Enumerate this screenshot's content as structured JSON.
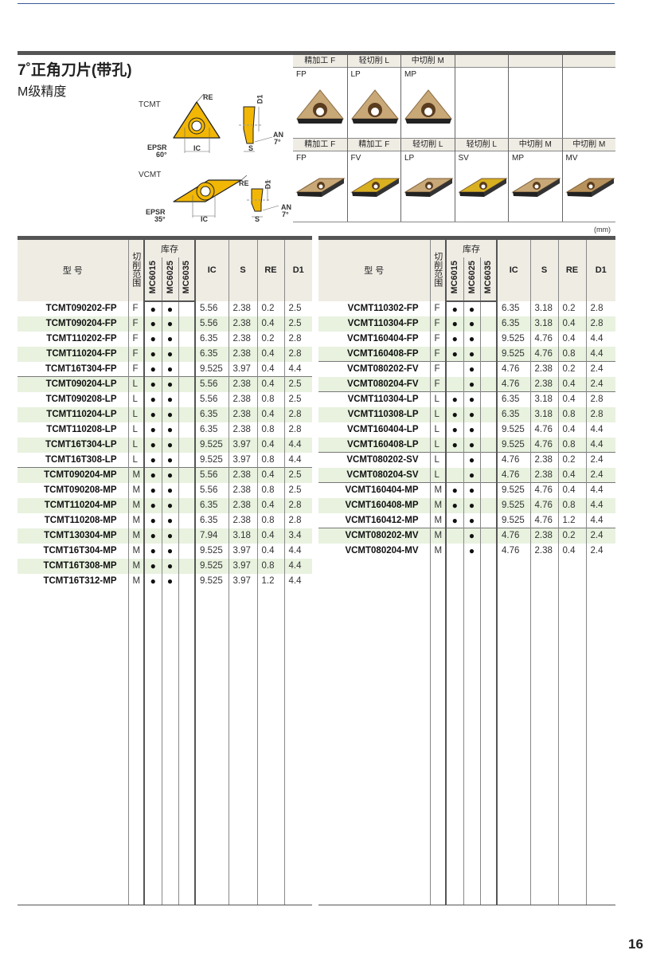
{
  "page": {
    "title": "7˚正角刀片(带孔)",
    "subtitle": "M级精度",
    "unit": "(mm)",
    "page_number": "16"
  },
  "diagrams": {
    "tcmt": {
      "name": "TCMT",
      "re": "RE",
      "d1": "D1",
      "an": "AN",
      "an_val": "7°",
      "epsr": "EPSR",
      "epsr_val": "60°",
      "ic": "IC",
      "s": "S"
    },
    "vcmt": {
      "name": "VCMT",
      "re": "RE",
      "d1": "D1",
      "an": "AN",
      "an_val": "7°",
      "epsr": "EPSR",
      "epsr_val": "35°",
      "ic": "IC",
      "s": "S"
    }
  },
  "chipbreakers": {
    "row1": [
      {
        "head": "精加工 F",
        "code": "FP",
        "shape": "tri"
      },
      {
        "head": "轻切削 L",
        "code": "LP",
        "shape": "tri"
      },
      {
        "head": "中切削 M",
        "code": "MP",
        "shape": "tri"
      },
      {
        "head": "",
        "code": ""
      },
      {
        "head": "",
        "code": ""
      },
      {
        "head": "",
        "code": ""
      }
    ],
    "row2": [
      {
        "head": "精加工 F",
        "code": "FP",
        "color": "#c9a878"
      },
      {
        "head": "精加工 F",
        "code": "FV",
        "color": "#d8b020"
      },
      {
        "head": "轻切削 L",
        "code": "LP",
        "color": "#c9a878"
      },
      {
        "head": "轻切削 L",
        "code": "SV",
        "color": "#d8b020"
      },
      {
        "head": "中切削 M",
        "code": "MP",
        "color": "#c9a878"
      },
      {
        "head": "中切削 M",
        "code": "MV",
        "color": "#b8925c"
      }
    ]
  },
  "table_headers": {
    "model": "型 号",
    "range": "切削范围",
    "stock": "库存",
    "grades": [
      "MC6015",
      "MC6025",
      "MC6035"
    ],
    "ic": "IC",
    "s": "S",
    "re": "RE",
    "d1": "D1"
  },
  "left_rows": [
    [
      "TCMT090202-FP",
      "F",
      1,
      1,
      0,
      "5.56",
      "2.38",
      "0.2",
      "2.5"
    ],
    [
      "TCMT090204-FP",
      "F",
      1,
      1,
      0,
      "5.56",
      "2.38",
      "0.4",
      "2.5"
    ],
    [
      "TCMT110202-FP",
      "F",
      1,
      1,
      0,
      "6.35",
      "2.38",
      "0.2",
      "2.8"
    ],
    [
      "TCMT110204-FP",
      "F",
      1,
      1,
      0,
      "6.35",
      "2.38",
      "0.4",
      "2.8"
    ],
    [
      "TCMT16T304-FP",
      "F",
      1,
      1,
      0,
      "9.525",
      "3.97",
      "0.4",
      "4.4"
    ],
    [
      "TCMT090204-LP",
      "L",
      1,
      1,
      0,
      "5.56",
      "2.38",
      "0.4",
      "2.5"
    ],
    [
      "TCMT090208-LP",
      "L",
      1,
      1,
      0,
      "5.56",
      "2.38",
      "0.8",
      "2.5"
    ],
    [
      "TCMT110204-LP",
      "L",
      1,
      1,
      0,
      "6.35",
      "2.38",
      "0.4",
      "2.8"
    ],
    [
      "TCMT110208-LP",
      "L",
      1,
      1,
      0,
      "6.35",
      "2.38",
      "0.8",
      "2.8"
    ],
    [
      "TCMT16T304-LP",
      "L",
      1,
      1,
      0,
      "9.525",
      "3.97",
      "0.4",
      "4.4"
    ],
    [
      "TCMT16T308-LP",
      "L",
      1,
      1,
      0,
      "9.525",
      "3.97",
      "0.8",
      "4.4"
    ],
    [
      "TCMT090204-MP",
      "M",
      1,
      1,
      0,
      "5.56",
      "2.38",
      "0.4",
      "2.5"
    ],
    [
      "TCMT090208-MP",
      "M",
      1,
      1,
      0,
      "5.56",
      "2.38",
      "0.8",
      "2.5"
    ],
    [
      "TCMT110204-MP",
      "M",
      1,
      1,
      0,
      "6.35",
      "2.38",
      "0.4",
      "2.8"
    ],
    [
      "TCMT110208-MP",
      "M",
      1,
      1,
      0,
      "6.35",
      "2.38",
      "0.8",
      "2.8"
    ],
    [
      "TCMT130304-MP",
      "M",
      1,
      1,
      0,
      "7.94",
      "3.18",
      "0.4",
      "3.4"
    ],
    [
      "TCMT16T304-MP",
      "M",
      1,
      1,
      0,
      "9.525",
      "3.97",
      "0.4",
      "4.4"
    ],
    [
      "TCMT16T308-MP",
      "M",
      1,
      1,
      0,
      "9.525",
      "3.97",
      "0.8",
      "4.4"
    ],
    [
      "TCMT16T312-MP",
      "M",
      1,
      1,
      0,
      "9.525",
      "3.97",
      "1.2",
      "4.4"
    ]
  ],
  "right_rows": [
    [
      "VCMT110302-FP",
      "F",
      1,
      1,
      0,
      "6.35",
      "3.18",
      "0.2",
      "2.8"
    ],
    [
      "VCMT110304-FP",
      "F",
      1,
      1,
      0,
      "6.35",
      "3.18",
      "0.4",
      "2.8"
    ],
    [
      "VCMT160404-FP",
      "F",
      1,
      1,
      0,
      "9.525",
      "4.76",
      "0.4",
      "4.4"
    ],
    [
      "VCMT160408-FP",
      "F",
      1,
      1,
      0,
      "9.525",
      "4.76",
      "0.8",
      "4.4"
    ],
    [
      "VCMT080202-FV",
      "F",
      0,
      1,
      0,
      "4.76",
      "2.38",
      "0.2",
      "2.4"
    ],
    [
      "VCMT080204-FV",
      "F",
      0,
      1,
      0,
      "4.76",
      "2.38",
      "0.4",
      "2.4"
    ],
    [
      "VCMT110304-LP",
      "L",
      1,
      1,
      0,
      "6.35",
      "3.18",
      "0.4",
      "2.8"
    ],
    [
      "VCMT110308-LP",
      "L",
      1,
      1,
      0,
      "6.35",
      "3.18",
      "0.8",
      "2.8"
    ],
    [
      "VCMT160404-LP",
      "L",
      1,
      1,
      0,
      "9.525",
      "4.76",
      "0.4",
      "4.4"
    ],
    [
      "VCMT160408-LP",
      "L",
      1,
      1,
      0,
      "9.525",
      "4.76",
      "0.8",
      "4.4"
    ],
    [
      "VCMT080202-SV",
      "L",
      0,
      1,
      0,
      "4.76",
      "2.38",
      "0.2",
      "2.4"
    ],
    [
      "VCMT080204-SV",
      "L",
      0,
      1,
      0,
      "4.76",
      "2.38",
      "0.4",
      "2.4"
    ],
    [
      "VCMT160404-MP",
      "M",
      1,
      1,
      0,
      "9.525",
      "4.76",
      "0.4",
      "4.4"
    ],
    [
      "VCMT160408-MP",
      "M",
      1,
      1,
      0,
      "9.525",
      "4.76",
      "0.8",
      "4.4"
    ],
    [
      "VCMT160412-MP",
      "M",
      1,
      1,
      0,
      "9.525",
      "4.76",
      "1.2",
      "4.4"
    ],
    [
      "VCMT080202-MV",
      "M",
      0,
      1,
      0,
      "4.76",
      "2.38",
      "0.2",
      "2.4"
    ],
    [
      "VCMT080204-MV",
      "M",
      0,
      1,
      0,
      "4.76",
      "2.38",
      "0.4",
      "2.4"
    ]
  ],
  "stock_symbol": "●",
  "colors": {
    "insert_yellow": "#f2b705",
    "row_shade": "#e8f2df",
    "header_bg": "#efece4"
  }
}
